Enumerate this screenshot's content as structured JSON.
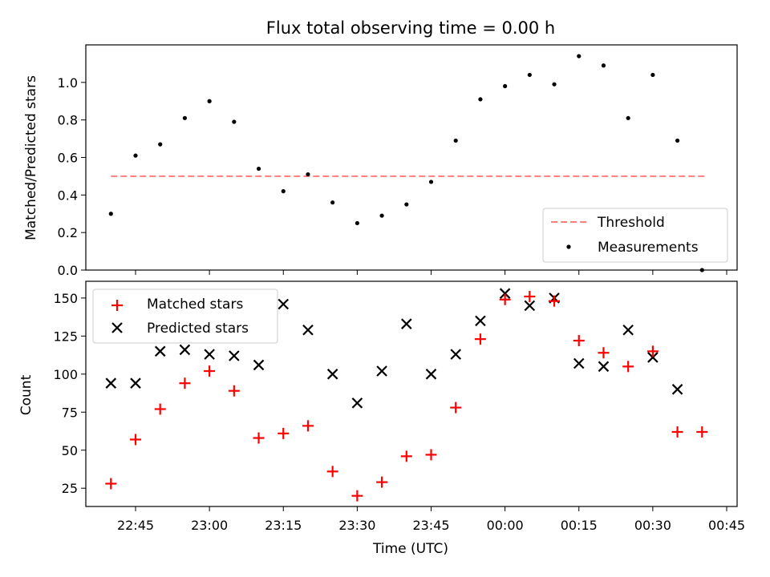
{
  "chart_data": [
    {
      "type": "scatter",
      "title": "Flux total observing time = 0.00 h",
      "xlabel": "",
      "ylabel": "Matched/Predicted stars",
      "ylim": [
        0,
        1.2
      ],
      "yticks": [
        "0.0",
        "0.2",
        "0.4",
        "0.6",
        "0.8",
        "1.0"
      ],
      "grid": false,
      "legend_position": "lower-right",
      "threshold": {
        "name": "Threshold",
        "value": 0.5,
        "color": "#ff7f7f",
        "style": "dashed",
        "x_start": "22:40",
        "x_end": "00:41"
      },
      "series": [
        {
          "name": "Measurements",
          "color": "#000000",
          "marker": "dot",
          "x": [
            "22:40",
            "22:45",
            "22:50",
            "22:55",
            "23:00",
            "23:05",
            "23:10",
            "23:15",
            "23:20",
            "23:25",
            "23:30",
            "23:35",
            "23:40",
            "23:45",
            "23:50",
            "23:55",
            "00:00",
            "00:05",
            "00:10",
            "00:15",
            "00:20",
            "00:25",
            "00:30",
            "00:35",
            "00:40"
          ],
          "values": [
            0.3,
            0.61,
            0.67,
            0.81,
            0.9,
            0.79,
            0.54,
            0.42,
            0.51,
            0.36,
            0.25,
            0.29,
            0.35,
            0.47,
            0.69,
            0.91,
            0.98,
            1.04,
            0.99,
            1.14,
            1.09,
            0.81,
            1.04,
            0.69,
            0.0
          ]
        }
      ]
    },
    {
      "type": "scatter",
      "title": "",
      "xlabel": "Time (UTC)",
      "ylabel": "Count",
      "ylim": [
        13,
        161
      ],
      "yticks": [
        "25",
        "50",
        "75",
        "100",
        "125",
        "150"
      ],
      "xticks": [
        "22:45",
        "23:00",
        "23:15",
        "23:30",
        "23:45",
        "00:00",
        "00:15",
        "00:30",
        "00:45"
      ],
      "grid": false,
      "legend_position": "upper-left",
      "series": [
        {
          "name": "Matched stars",
          "color": "#ff0000",
          "marker": "plus",
          "x": [
            "22:40",
            "22:45",
            "22:50",
            "22:55",
            "23:00",
            "23:05",
            "23:10",
            "23:15",
            "23:20",
            "23:25",
            "23:30",
            "23:35",
            "23:40",
            "23:45",
            "23:50",
            "23:55",
            "00:00",
            "00:05",
            "00:10",
            "00:15",
            "00:20",
            "00:25",
            "00:30",
            "00:35",
            "00:40"
          ],
          "values": [
            28,
            57,
            77,
            94,
            102,
            89,
            58,
            61,
            66,
            36,
            20,
            29,
            46,
            47,
            78,
            123,
            149,
            151,
            148,
            122,
            114,
            105,
            115,
            62,
            62
          ]
        },
        {
          "name": "Predicted stars",
          "color": "#000000",
          "marker": "x",
          "x": [
            "22:40",
            "22:45",
            "22:50",
            "22:55",
            "23:00",
            "23:05",
            "23:10",
            "23:15",
            "23:20",
            "23:25",
            "23:30",
            "23:35",
            "23:40",
            "23:45",
            "23:50",
            "23:55",
            "00:00",
            "00:05",
            "00:10",
            "00:15",
            "00:20",
            "00:25",
            "00:30",
            "00:35"
          ],
          "values": [
            94,
            94,
            115,
            116,
            113,
            112,
            106,
            146,
            129,
            100,
            81,
            102,
            133,
            100,
            113,
            135,
            153,
            145,
            150,
            107,
            105,
            129,
            111,
            90
          ]
        }
      ]
    }
  ]
}
